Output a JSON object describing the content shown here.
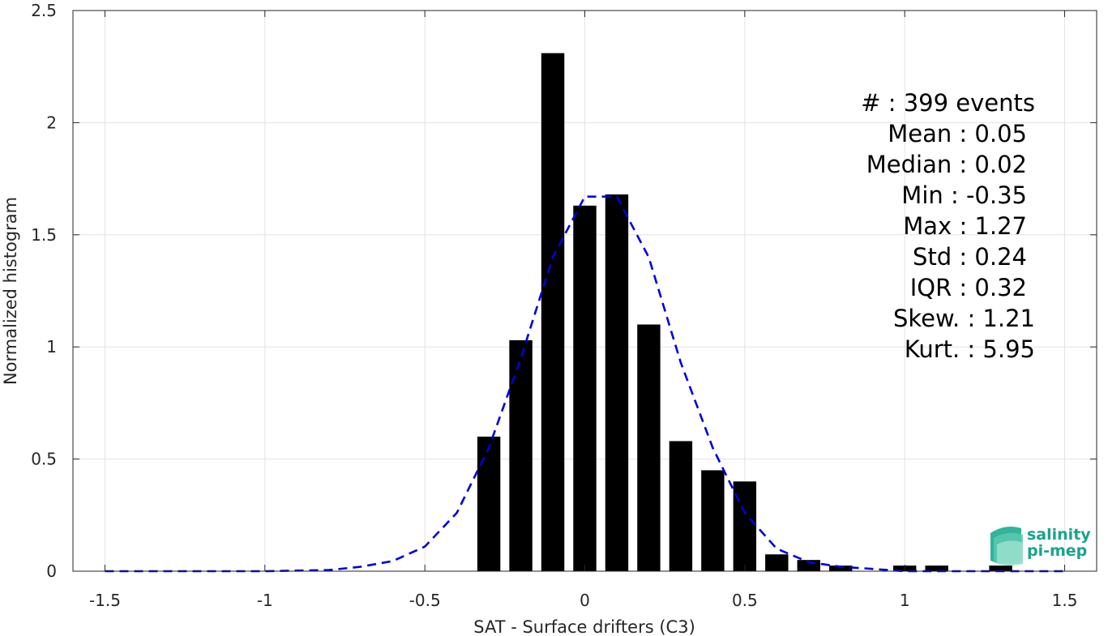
{
  "chart_data": {
    "type": "bar",
    "xlabel": "SAT - Surface drifters (C3)",
    "ylabel": "Normalized histogram",
    "xlim": [
      -1.6,
      1.6
    ],
    "ylim": [
      0,
      2.5
    ],
    "xticks": [
      -1.5,
      -1,
      -0.5,
      0,
      0.5,
      1,
      1.5
    ],
    "xtick_labels": [
      "-1.5",
      "-1",
      "-0.5",
      "0",
      "0.5",
      "1",
      "1.5"
    ],
    "yticks": [
      0,
      0.5,
      1,
      1.5,
      2,
      2.5
    ],
    "ytick_labels": [
      "0",
      "0.5",
      "1",
      "1.5",
      "2",
      "2.5"
    ],
    "grid": true,
    "bar_color": "#000000",
    "bar_width": 0.072,
    "bars": {
      "x": [
        -0.3,
        -0.2,
        -0.1,
        0.0,
        0.1,
        0.2,
        0.3,
        0.4,
        0.5,
        0.6,
        0.7,
        0.8,
        1.0,
        1.1,
        1.3
      ],
      "values": [
        0.6,
        1.03,
        2.31,
        1.63,
        1.68,
        1.1,
        0.58,
        0.45,
        0.4,
        0.075,
        0.05,
        0.025,
        0.025,
        0.025,
        0.025
      ]
    },
    "fit_curve": {
      "style": "dashed",
      "color": "#0000dd",
      "x": [
        -1.5,
        -1.0,
        -0.8,
        -0.7,
        -0.6,
        -0.5,
        -0.4,
        -0.3,
        -0.2,
        -0.1,
        0.0,
        0.1,
        0.2,
        0.3,
        0.4,
        0.5,
        0.6,
        0.7,
        0.8,
        0.9,
        1.0,
        1.2,
        1.5
      ],
      "y": [
        0.0,
        0.0,
        0.005,
        0.02,
        0.045,
        0.11,
        0.26,
        0.55,
        0.95,
        1.4,
        1.67,
        1.67,
        1.4,
        0.93,
        0.55,
        0.26,
        0.1,
        0.04,
        0.02,
        0.01,
        0.0,
        0.0,
        0.0
      ]
    },
    "annotations": [
      "#  : 399 events",
      "Mean : 0.05",
      "Median : 0.02",
      "Min : -0.35",
      "Max : 1.27",
      "Std : 0.24",
      "IQR : 0.32",
      "Skew. : 1.21",
      "Kurt. : 5.95"
    ]
  },
  "logo": {
    "line1": "salinity",
    "line2": "pi-mep",
    "color": "#1aa38a"
  }
}
